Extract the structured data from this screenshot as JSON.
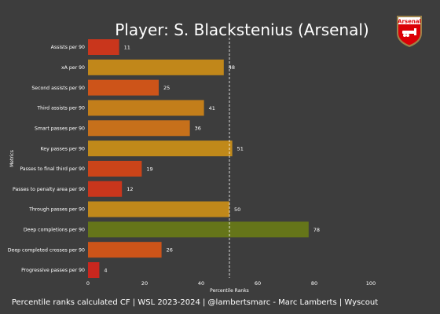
{
  "chart_data": {
    "type": "bar",
    "orientation": "horizontal",
    "title": "Player: S. Blackstenius (Arsenal)",
    "xlabel": "Percentile Ranks",
    "ylabel": "Metrics",
    "xlim": [
      0,
      100
    ],
    "xticks": [
      0,
      20,
      40,
      60,
      80,
      100
    ],
    "reference_line": 50,
    "categories": [
      "Assists per 90",
      "xA per 90",
      "Second assists per 90",
      "Third assists per 90",
      "Smart passes per 90",
      "Key passes per 90",
      "Passes to final third per 90",
      "Passes to penalty area per 90",
      "Through passes per 90",
      "Deep completions per 90",
      "Deep completed crosses per 90",
      "Progressive passes per 90"
    ],
    "values": [
      11,
      48,
      25,
      41,
      36,
      51,
      19,
      12,
      50,
      78,
      26,
      4
    ],
    "colors": [
      "#c9361c",
      "#c1871a",
      "#cd5419",
      "#c37e1a",
      "#c6701b",
      "#c0891a",
      "#cb4419",
      "#c9361c",
      "#c0881a",
      "#657519",
      "#cd5419",
      "#c9271e"
    ],
    "grid": false
  },
  "footer": "Percentile ranks calculated CF | WSL 2023-2024 | @lambertsmarc - Marc Lamberts | Wyscout",
  "crest": {
    "label": "Arsenal",
    "icon": "arsenal-crest-icon",
    "primary": "#db0007",
    "secondary": "#ffffff",
    "accent": "#9c824a"
  }
}
